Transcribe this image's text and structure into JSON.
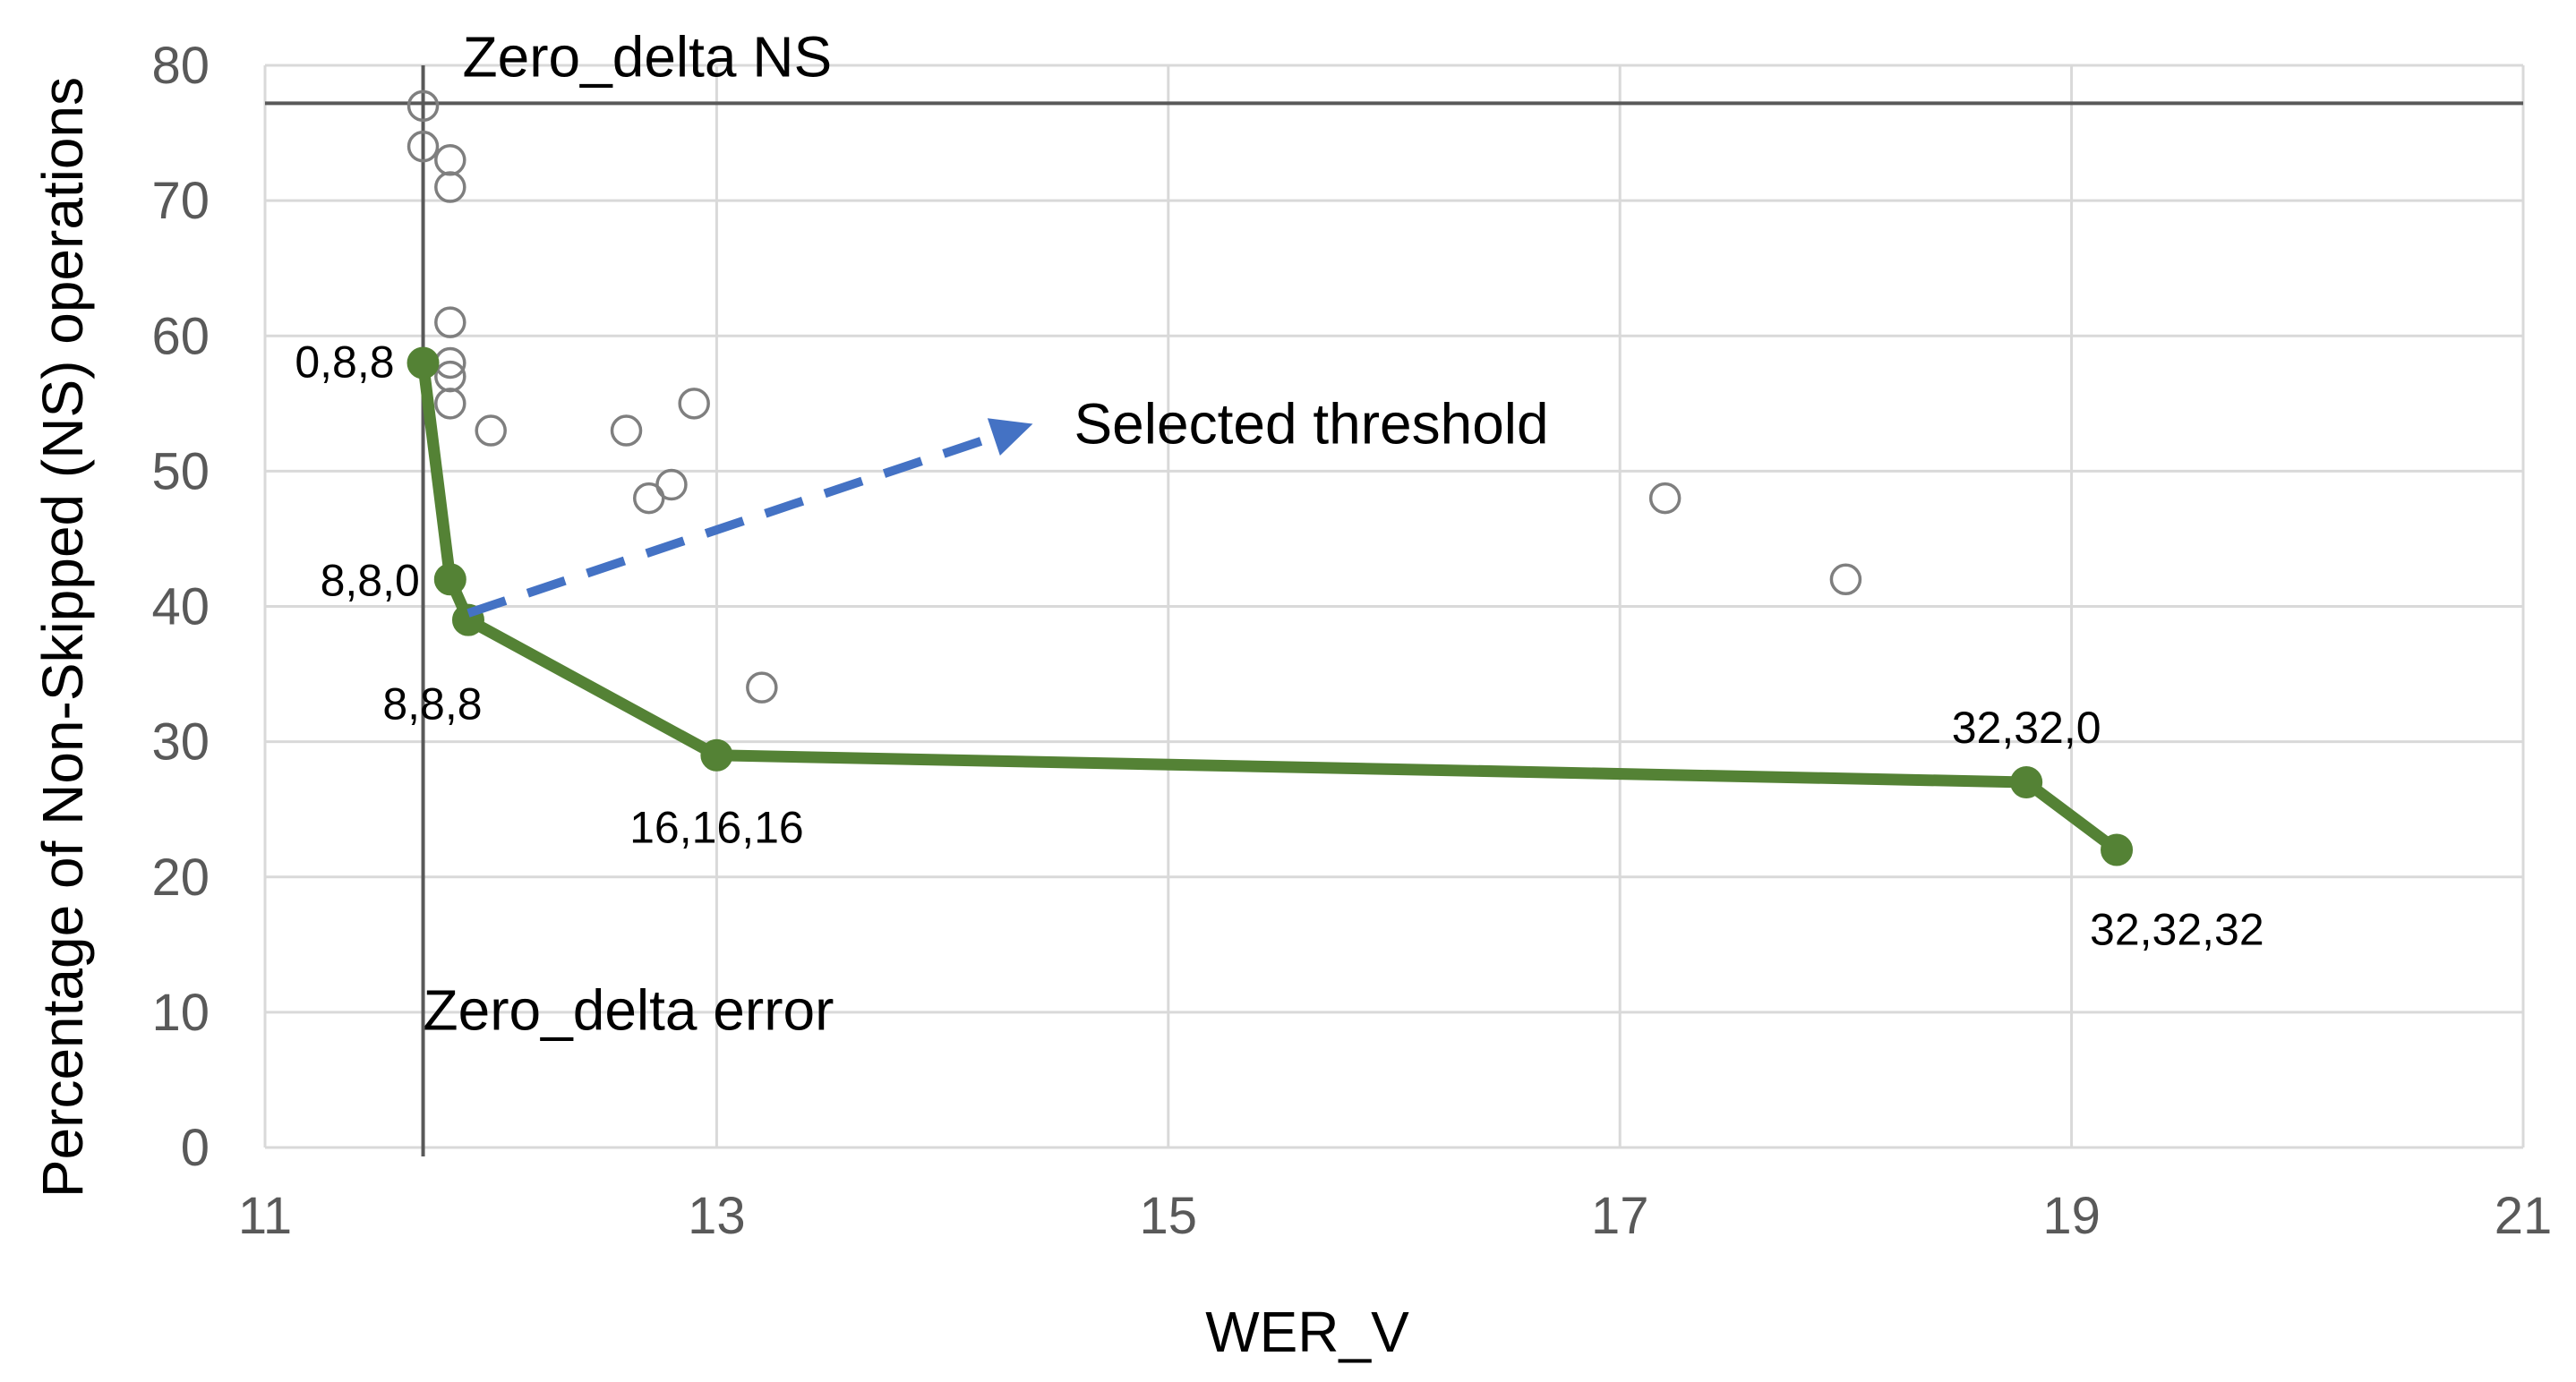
{
  "chart_data": {
    "type": "scatter",
    "xlabel": "WER_V",
    "ylabel": "Percentage of Non-Skipped (NS) operations",
    "xlim": [
      11,
      21
    ],
    "ylim": [
      0,
      80
    ],
    "x_ticks": [
      11,
      13,
      15,
      17,
      19,
      21
    ],
    "y_ticks": [
      0,
      10,
      20,
      30,
      40,
      50,
      60,
      70,
      80
    ],
    "grid": true,
    "legend": "none",
    "colors": {
      "scatter": "#7f7f7f",
      "frontier": "#548235",
      "arrow": "#4472c4",
      "reference": "#595959",
      "grid": "#d9d9d9"
    },
    "series": [
      {
        "kind": "scatter",
        "marker": "hollow-circle",
        "points": [
          {
            "x": 11.7,
            "y": 77
          },
          {
            "x": 11.7,
            "y": 74
          },
          {
            "x": 11.82,
            "y": 73
          },
          {
            "x": 11.82,
            "y": 71
          },
          {
            "x": 11.82,
            "y": 61
          },
          {
            "x": 11.82,
            "y": 58
          },
          {
            "x": 11.82,
            "y": 57
          },
          {
            "x": 11.82,
            "y": 55
          },
          {
            "x": 12.0,
            "y": 53
          },
          {
            "x": 12.6,
            "y": 53
          },
          {
            "x": 12.9,
            "y": 55
          },
          {
            "x": 12.7,
            "y": 48
          },
          {
            "x": 12.8,
            "y": 49
          },
          {
            "x": 13.2,
            "y": 34
          },
          {
            "x": 17.2,
            "y": 48
          },
          {
            "x": 18.0,
            "y": 42
          }
        ]
      },
      {
        "kind": "line",
        "marker": "filled-circle",
        "points": [
          {
            "x": 11.7,
            "y": 58,
            "label": "0,8,8"
          },
          {
            "x": 11.82,
            "y": 42,
            "label": "8,8,0"
          },
          {
            "x": 11.9,
            "y": 39,
            "label": "8,8,8"
          },
          {
            "x": 13.0,
            "y": 29,
            "label": "16,16,16"
          },
          {
            "x": 18.8,
            "y": 27,
            "label": "32,32,0"
          },
          {
            "x": 19.2,
            "y": 22,
            "label": "32,32,32"
          }
        ]
      }
    ],
    "reference_lines": [
      {
        "orientation": "horizontal",
        "value": 77.2,
        "label": "Zero_delta NS"
      },
      {
        "orientation": "vertical",
        "value": 11.7,
        "label": "Zero_delta error"
      }
    ],
    "annotation": {
      "text": "Selected threshold",
      "from": {
        "x": 11.9,
        "y": 39.5
      },
      "to": {
        "x": 14.4,
        "y": 53.5
      }
    }
  }
}
